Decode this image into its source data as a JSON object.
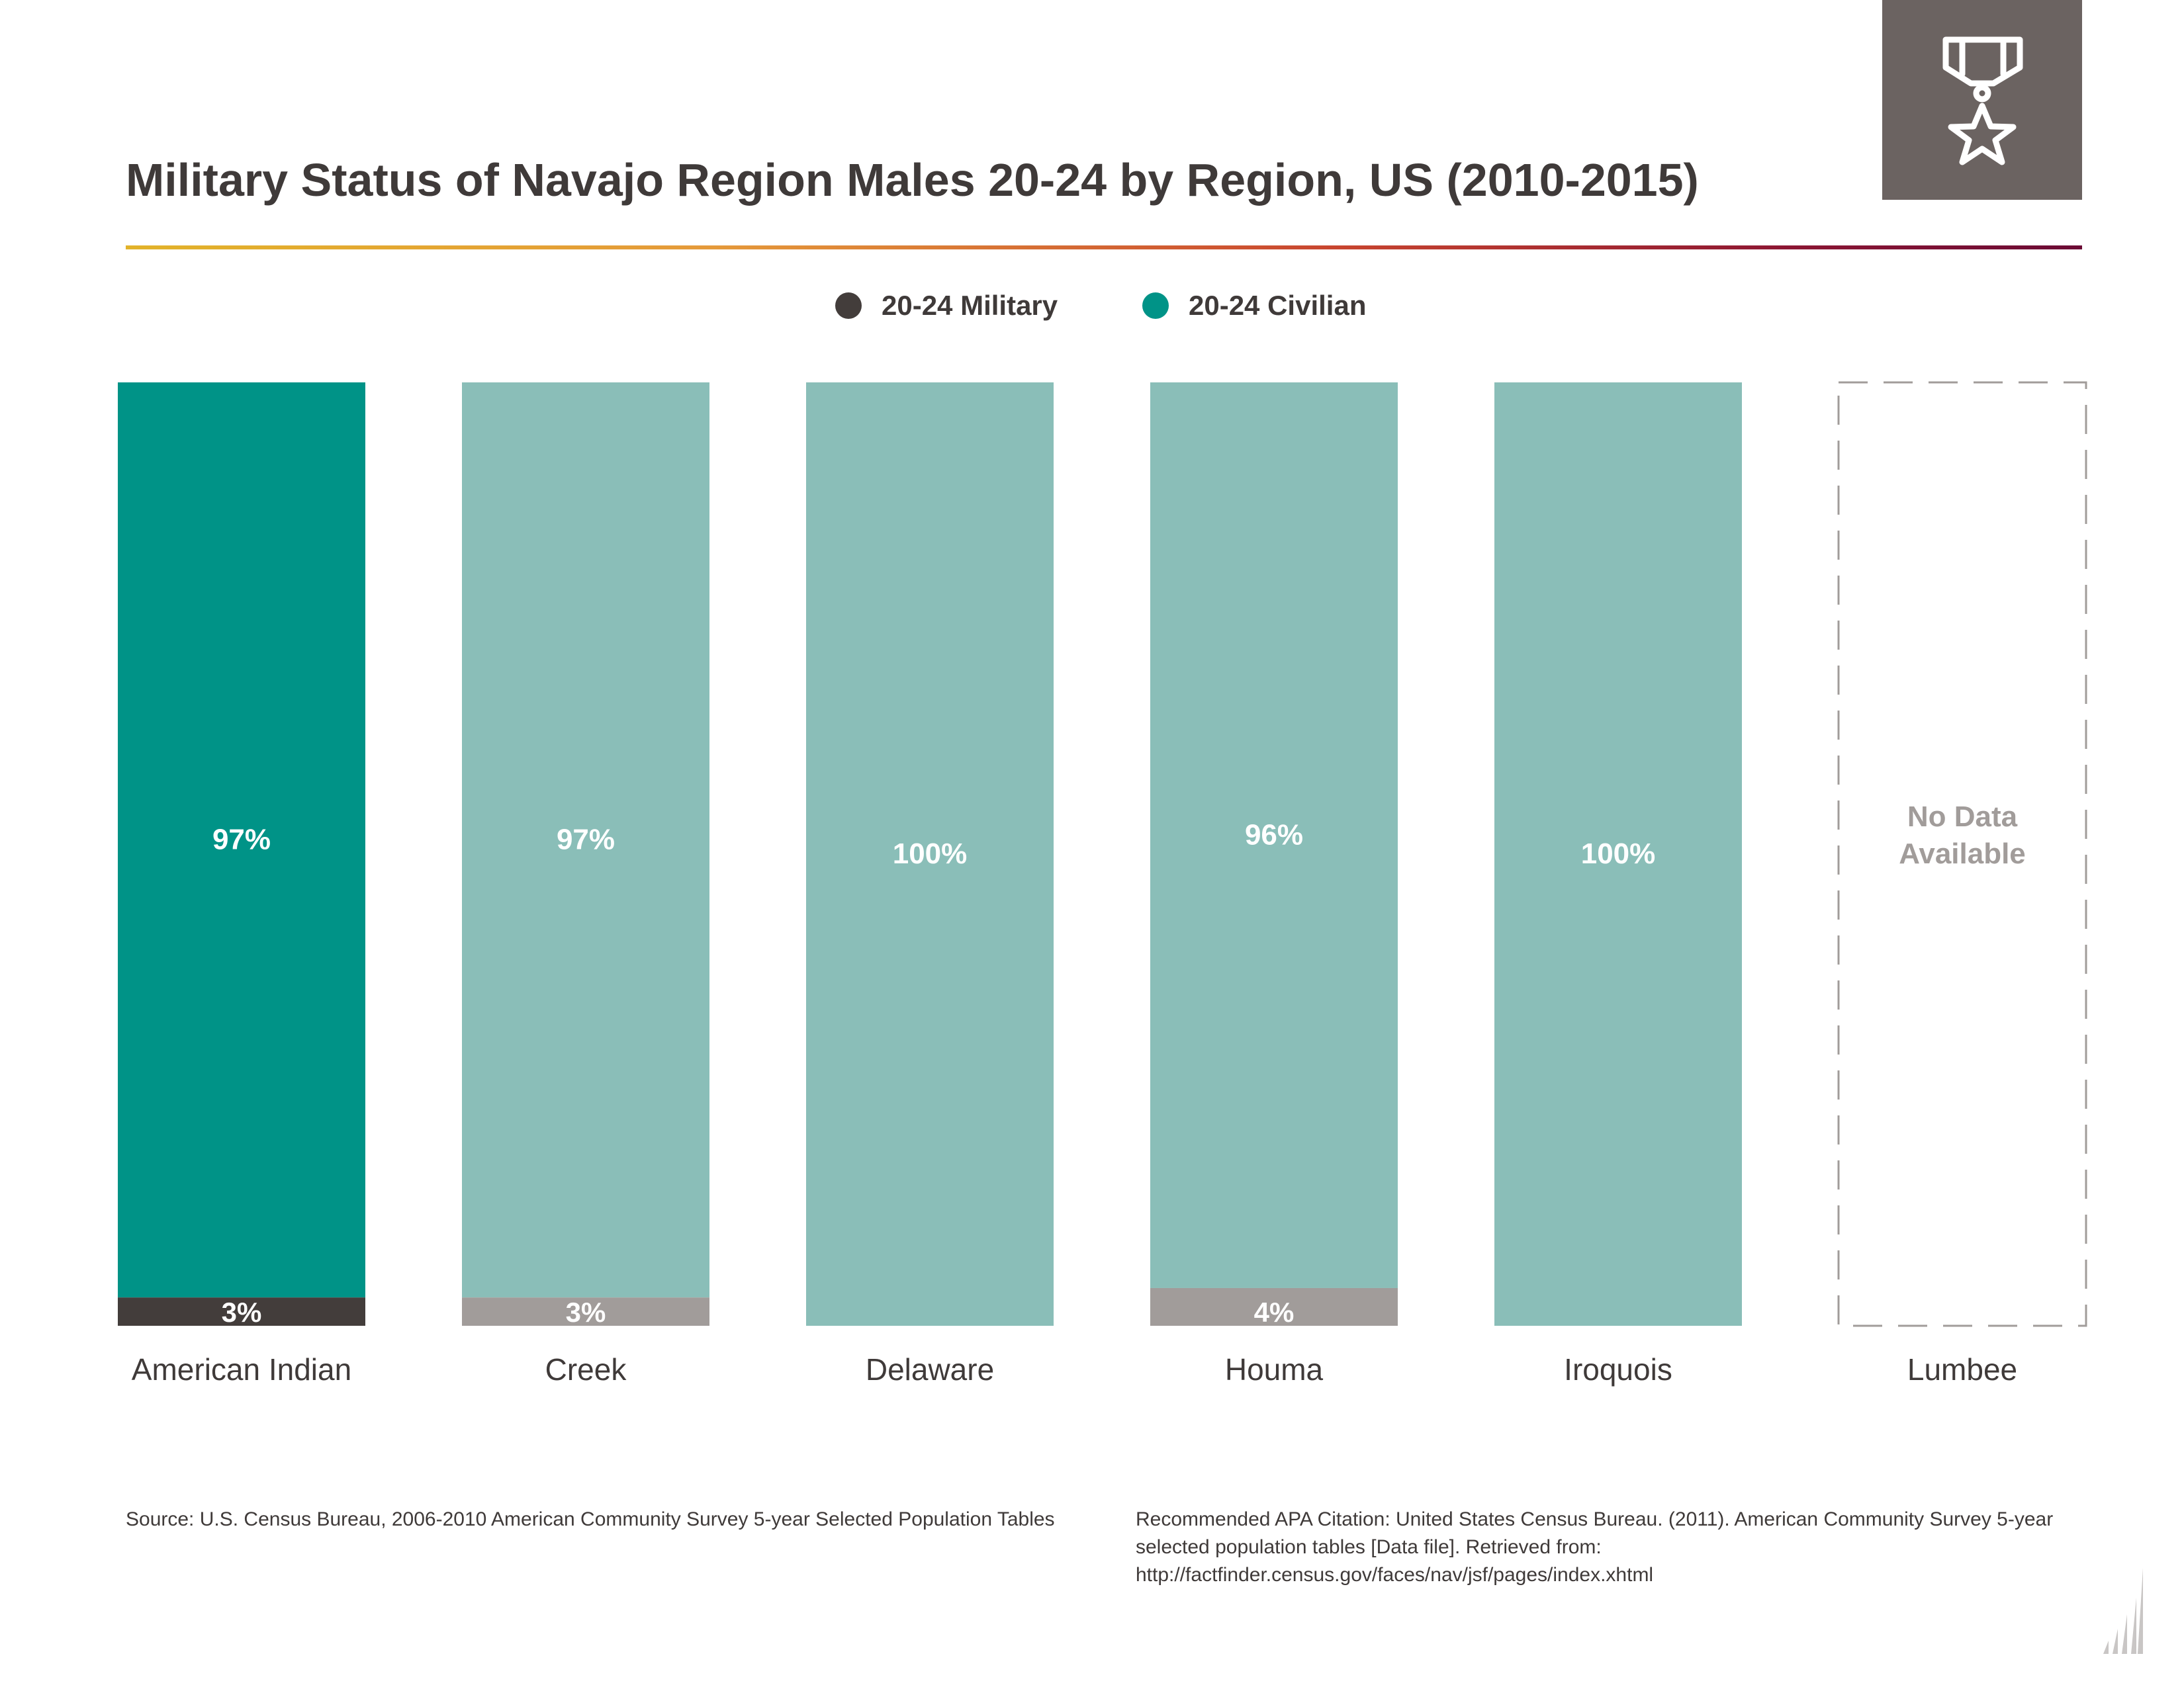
{
  "colors": {
    "military_highlight": "#433d3b",
    "civilian_highlight": "#009387",
    "military_muted": "#a19c9a",
    "civilian_muted": "#8abeb8",
    "no_data_text": "#a19c9a"
  },
  "header": {
    "title": "Military Status of Navajo Region Males 20-24 by Region, US (2010-2015)",
    "badge_icon": "military-medal-icon"
  },
  "legend": [
    {
      "label": "20-24 Military",
      "color": "#433d3b"
    },
    {
      "label": "20-24 Civilian",
      "color": "#009387"
    }
  ],
  "chart_data": {
    "type": "bar",
    "stacked": true,
    "percent": true,
    "ylim": [
      0,
      100
    ],
    "categories": [
      "American Indian",
      "Creek",
      "Delaware",
      "Houma",
      "Iroquois",
      "Lumbee"
    ],
    "highlight_category": "American Indian",
    "series": [
      {
        "name": "20-24 Military",
        "values": [
          3,
          3,
          0,
          4,
          0,
          null
        ],
        "labels": [
          "3%",
          "3%",
          "",
          "4%",
          "",
          ""
        ]
      },
      {
        "name": "20-24 Civilian",
        "values": [
          97,
          97,
          100,
          96,
          100,
          null
        ],
        "labels": [
          "97%",
          "97%",
          "100%",
          "96%",
          "100%",
          ""
        ]
      }
    ],
    "no_data_label_lines": [
      "No Data",
      "Available"
    ],
    "grid": false,
    "legend_position": "top"
  },
  "footer": {
    "source": "Source:  U.S. Census Bureau, 2006-2010 American Community Survey 5-year Selected Population Tables",
    "citation": "Recommended APA Citation: United States Census Bureau. (2011). American Community Survey 5-year selected population tables [Data file]. Retrieved from: http://factfinder.census.gov/faces/nav/jsf/pages/index.xhtml"
  }
}
